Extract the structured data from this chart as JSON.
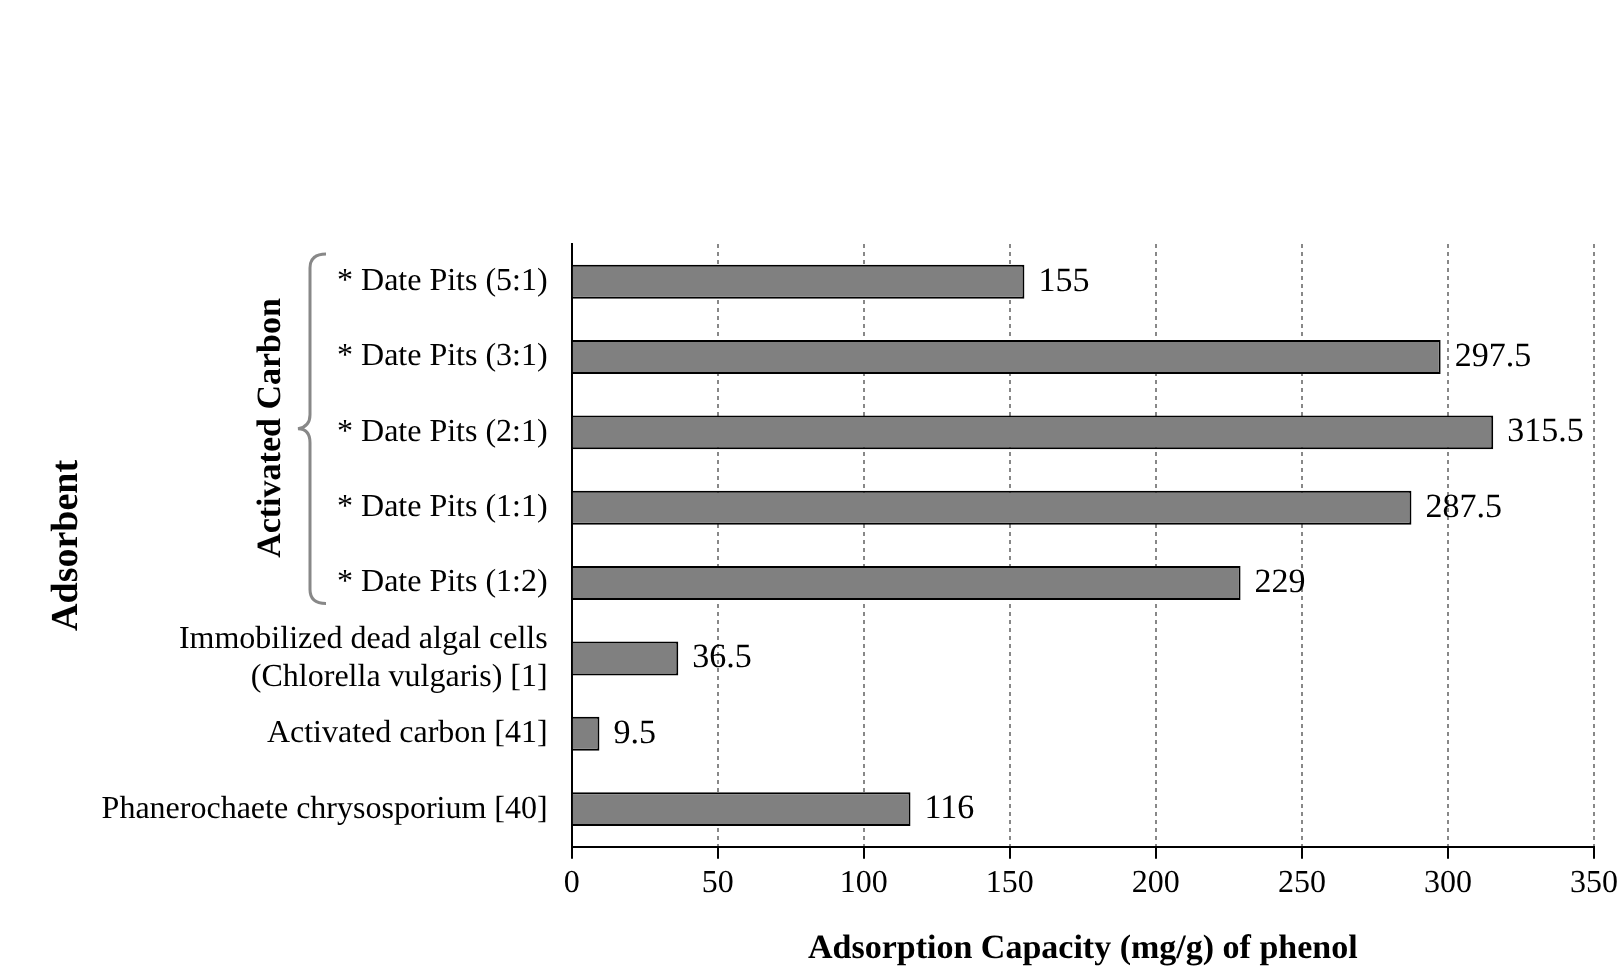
{
  "chart_data": {
    "type": "bar",
    "orientation": "horizontal",
    "categories": [
      "* Date Pits (5:1)",
      "* Date Pits (3:1)",
      "* Date Pits (2:1)",
      "* Date Pits (1:1)",
      "* Date Pits (1:2)",
      "Immobilized dead algal cells (Chlorella vulgaris) [1]",
      "Activated carbon [41]",
      "Phanerochaete chrysosporium [40]"
    ],
    "values": [
      155,
      297.5,
      315.5,
      287.5,
      229,
      36.5,
      9.5,
      116
    ],
    "color": "#808080",
    "xlim": [
      0,
      350
    ],
    "xticks": [
      0,
      50,
      100,
      150,
      200,
      250,
      300,
      350
    ],
    "xlabel": "Adsorption Capacity (mg/g) of phenol",
    "ylabel": "Adsorbent",
    "annotations": [
      "Activated Carbon"
    ],
    "data_labels": true,
    "grid": "x",
    "legend": false
  }
}
